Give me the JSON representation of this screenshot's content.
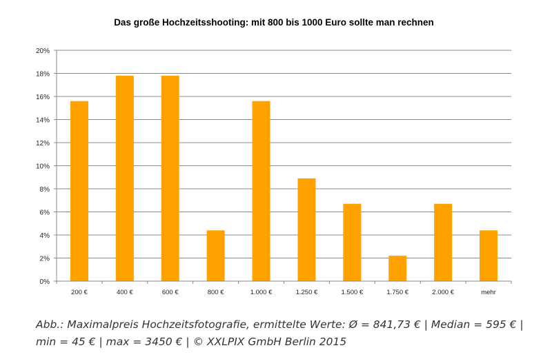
{
  "chart_data": {
    "type": "bar",
    "title": "Das große Hochzeitsshooting: mit 800 bis 1000 Euro sollte man rechnen",
    "xlabel": "",
    "ylabel": "",
    "categories": [
      "200 €",
      "400 €",
      "600 €",
      "800 €",
      "1.000 €",
      "1.250 €",
      "1.500 €",
      "1.750 €",
      "2.000 €",
      "mehr"
    ],
    "values": [
      15.6,
      17.8,
      17.8,
      4.4,
      15.6,
      8.9,
      6.7,
      2.2,
      6.7,
      4.4
    ],
    "ylim": [
      0,
      20
    ],
    "yticks": [
      0,
      2,
      4,
      6,
      8,
      10,
      12,
      14,
      16,
      18,
      20
    ],
    "ytick_labels": [
      "0%",
      "2%",
      "4%",
      "6%",
      "8%",
      "10%",
      "12%",
      "14%",
      "16%",
      "18%",
      "20%"
    ],
    "bar_color": "#FFA200",
    "grid": true,
    "legend": "none"
  },
  "caption": {
    "line1": "Abb.: Maximalpreis Hochzeitsfotografie, ermittelte Werte: Ø = 841,73 € | Median = 595 € |",
    "line2": "min = 45 € | max = 3450 € | © XXLPIX GmbH Berlin 2015"
  }
}
